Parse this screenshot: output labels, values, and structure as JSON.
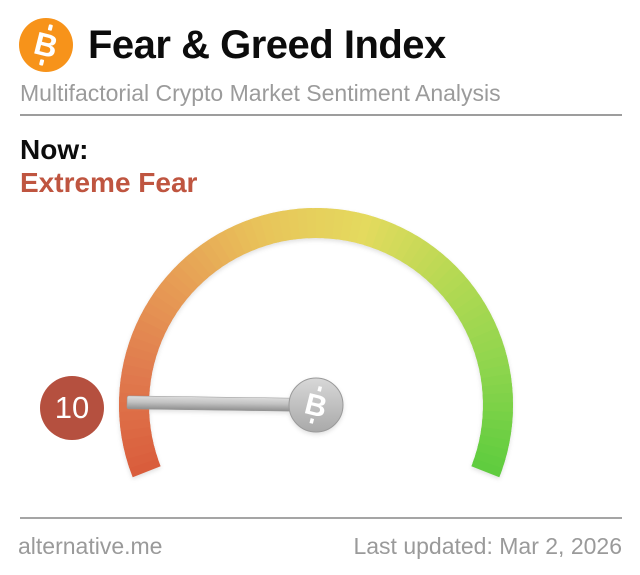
{
  "header": {
    "title": "Fear & Greed Index",
    "subtitle": "Multifactorial Crypto Market Sentiment Analysis",
    "logo_color": "#f7931a"
  },
  "icons": {
    "bitcoin_letter": "B"
  },
  "status": {
    "now_label": "Now:",
    "sentiment": "Extreme Fear",
    "sentiment_color": "#bf5540"
  },
  "chart_data": {
    "type": "gauge",
    "value": 10,
    "min": 0,
    "max": 100,
    "classification": "Extreme Fear",
    "start_angle_deg": 201.5,
    "end_angle_deg": -21.5,
    "arc_colors": [
      "#d95b3b",
      "#e07a4e",
      "#e79d55",
      "#e8c45a",
      "#e4da5e",
      "#b5d953",
      "#8dd54d",
      "#5ecc3e"
    ],
    "needle_color_top": "#dcdcdc",
    "needle_color_bottom": "#8f8f8f",
    "hub_color_top": "#d8d8d8",
    "hub_color_bottom": "#a9a9a9",
    "badge": {
      "label": "10",
      "color": "#b5503f",
      "text_color": "#ffffff"
    }
  },
  "footer": {
    "site": "alternative.me",
    "last_updated": "Last updated: Mar 2, 2026"
  }
}
